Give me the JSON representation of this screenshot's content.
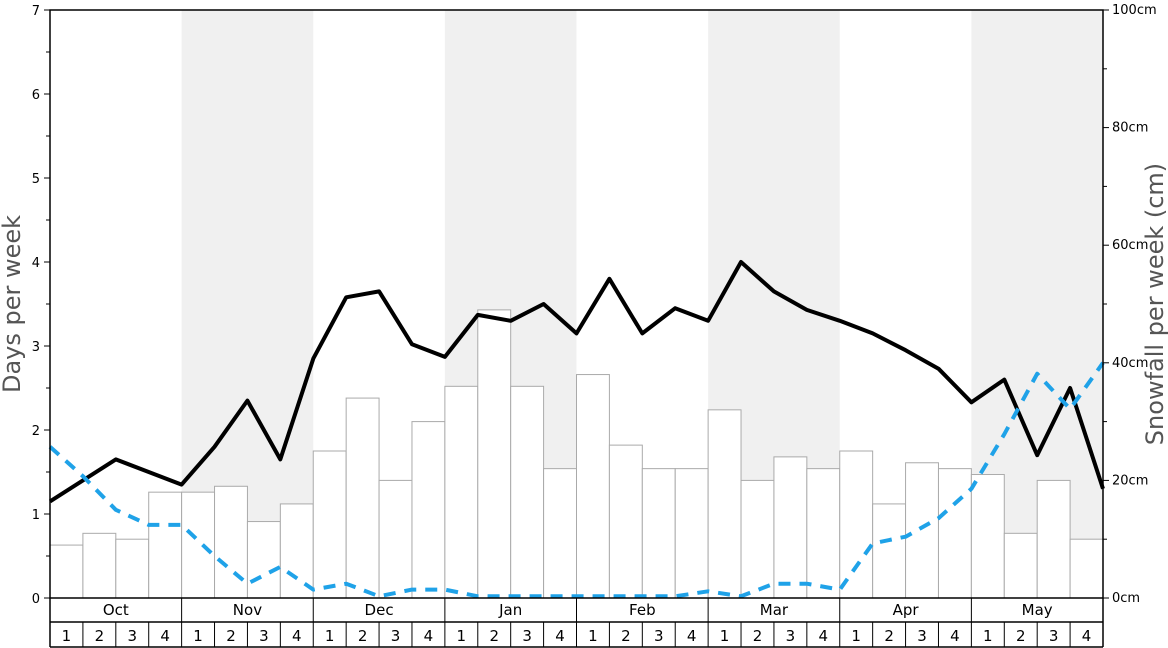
{
  "chart_data": {
    "type": "bar",
    "ylabel_left": "Days per week",
    "ylabel_right": "Snowfall per week (cm)",
    "ylim_left": [
      0,
      7
    ],
    "ylim_right": [
      0,
      100
    ],
    "left_ticks": [
      "0",
      "1",
      "2",
      "3",
      "4",
      "5",
      "6",
      "7"
    ],
    "right_ticks": [
      "0cm",
      "20cm",
      "40cm",
      "60cm",
      "80cm",
      "100cm"
    ],
    "months": [
      "Oct",
      "Nov",
      "Dec",
      "Jan",
      "Feb",
      "Mar",
      "Apr",
      "May"
    ],
    "weeks": [
      "1",
      "2",
      "3",
      "4"
    ],
    "shaded_months": [
      "Nov",
      "Jan",
      "Mar",
      "May"
    ],
    "series": [
      {
        "kind": "bar",
        "axis": "right",
        "values": [
          9,
          11,
          10,
          18,
          18,
          19,
          13,
          16,
          25,
          34,
          20,
          30,
          36,
          49,
          36,
          22,
          38,
          26,
          22,
          22,
          32,
          20,
          24,
          22,
          25,
          16,
          23,
          22,
          21,
          11,
          20,
          10
        ]
      },
      {
        "kind": "line",
        "axis": "left",
        "color": "#000000",
        "style": "solid",
        "values": [
          1.15,
          1.4,
          1.65,
          1.5,
          1.35,
          1.8,
          2.35,
          1.65,
          2.85,
          3.58,
          3.65,
          3.02,
          2.87,
          3.37,
          3.3,
          3.5,
          3.15,
          3.8,
          3.15,
          3.45,
          3.3,
          4.0,
          3.65,
          3.43,
          3.3,
          3.15,
          2.95,
          2.73,
          2.33,
          2.6,
          1.7,
          2.5,
          1.3
        ]
      },
      {
        "kind": "line",
        "axis": "left",
        "color": "#1fa2e8",
        "style": "dashed",
        "values": [
          1.8,
          1.45,
          1.05,
          0.87,
          0.87,
          0.5,
          0.17,
          0.37,
          0.1,
          0.17,
          0.02,
          0.1,
          0.1,
          0.02,
          0.02,
          0.02,
          0.02,
          0.02,
          0.02,
          0.02,
          0.08,
          0.02,
          0.17,
          0.17,
          0.1,
          0.65,
          0.73,
          0.95,
          1.3,
          1.95,
          2.67,
          2.25,
          2.8
        ]
      }
    ]
  }
}
